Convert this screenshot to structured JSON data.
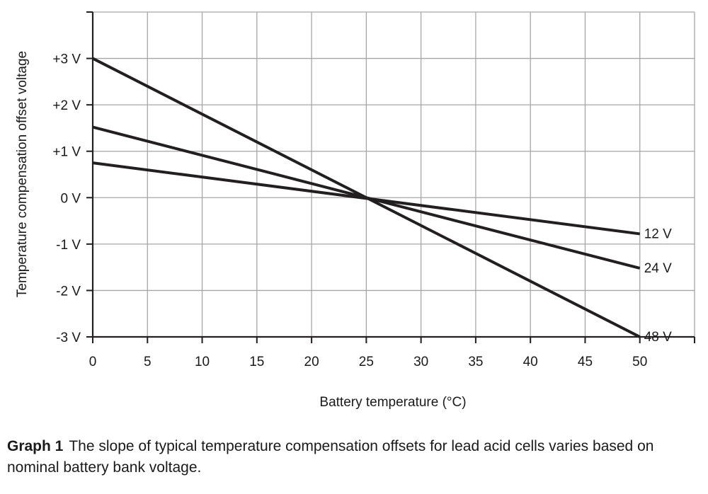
{
  "chart_data": {
    "type": "line",
    "title": "",
    "xlabel": "Battery temperature (°C)",
    "ylabel": "Temperature compensation offset voltage",
    "xlim": [
      0,
      55
    ],
    "ylim": [
      -3,
      4
    ],
    "x_ticks": [
      0,
      5,
      10,
      15,
      20,
      25,
      30,
      35,
      40,
      45,
      50
    ],
    "x_tick_labels": [
      "0",
      "5",
      "10",
      "15",
      "20",
      "25",
      "30",
      "35",
      "40",
      "45",
      "50"
    ],
    "y_ticks": [
      3,
      2,
      1,
      0,
      -1,
      -2,
      -3
    ],
    "y_tick_labels": [
      "+3 V",
      "+2 V",
      "+1 V",
      "0 V",
      "-1 V",
      "-2 V",
      "-3 V"
    ],
    "grid": true,
    "series": [
      {
        "name": "12 V",
        "x": [
          0,
          50
        ],
        "y": [
          0.75,
          -0.78
        ]
      },
      {
        "name": "24 V",
        "x": [
          0,
          50
        ],
        "y": [
          1.52,
          -1.52
        ]
      },
      {
        "name": "48 V",
        "x": [
          0,
          50
        ],
        "y": [
          3.0,
          -3.0
        ]
      }
    ],
    "colors": {
      "line": "#231f20",
      "grid": "#a6a6a6",
      "axis": "#231f20"
    }
  },
  "caption": {
    "label": "Graph 1",
    "text": "The slope of typical temperature compensation offsets for lead acid cells varies based on nominal battery bank voltage."
  }
}
